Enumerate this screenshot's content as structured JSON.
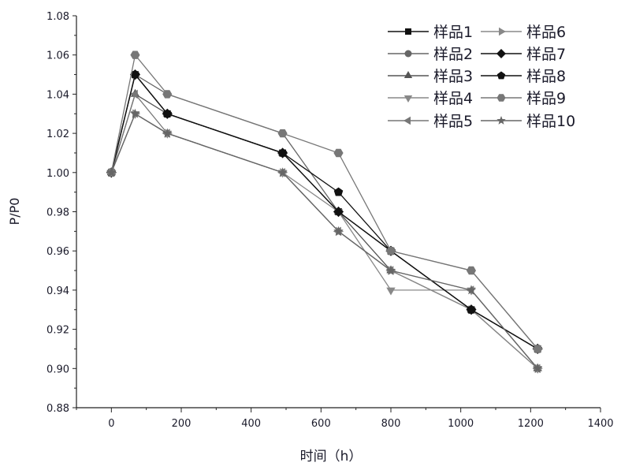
{
  "chart_data": {
    "type": "line",
    "title": "",
    "xlabel": "时间（h）",
    "ylabel": "P/P0",
    "xlim": [
      -100,
      1400
    ],
    "ylim": [
      0.88,
      1.08
    ],
    "xticks": [
      0,
      200,
      400,
      600,
      800,
      1000,
      1200,
      1400
    ],
    "yticks": [
      "0.88",
      "0.90",
      "0.92",
      "0.94",
      "0.96",
      "0.98",
      "1.00",
      "1.02",
      "1.04",
      "1.06",
      "1.08"
    ],
    "grid": false,
    "legend_position": "top-right",
    "x": [
      0,
      68,
      160,
      490,
      650,
      800,
      1030,
      1220
    ],
    "series": [
      {
        "name": "样品1",
        "marker": "square",
        "color": "#111111",
        "values": [
          1.0,
          1.05,
          1.03,
          1.01,
          0.98,
          0.96,
          0.93,
          0.91
        ]
      },
      {
        "name": "样品2",
        "marker": "circle",
        "color": "#666666",
        "values": [
          1.0,
          1.05,
          1.04,
          1.02,
          0.98,
          0.96,
          0.95,
          0.91
        ]
      },
      {
        "name": "样品3",
        "marker": "triangle-up",
        "color": "#555555",
        "values": [
          1.0,
          1.04,
          1.03,
          1.01,
          0.98,
          0.95,
          0.93,
          0.9
        ]
      },
      {
        "name": "样品4",
        "marker": "triangle-down",
        "color": "#888888",
        "values": [
          1.0,
          1.03,
          1.02,
          1.0,
          0.98,
          0.94,
          0.94,
          0.9
        ]
      },
      {
        "name": "样品5",
        "marker": "triangle-left",
        "color": "#777777",
        "values": [
          1.0,
          1.04,
          1.02,
          1.0,
          0.97,
          0.95,
          0.94,
          0.9
        ]
      },
      {
        "name": "样品6",
        "marker": "triangle-right",
        "color": "#888888",
        "values": [
          1.0,
          1.03,
          1.02,
          1.0,
          0.97,
          0.95,
          0.93,
          0.9
        ]
      },
      {
        "name": "样品7",
        "marker": "diamond",
        "color": "#111111",
        "values": [
          1.0,
          1.05,
          1.03,
          1.01,
          0.98,
          0.96,
          0.93,
          0.91
        ]
      },
      {
        "name": "样品8",
        "marker": "pentagon",
        "color": "#111111",
        "values": [
          1.0,
          1.05,
          1.03,
          1.01,
          0.99,
          0.96,
          0.93,
          0.91
        ]
      },
      {
        "name": "样品9",
        "marker": "hexagon",
        "color": "#777777",
        "values": [
          1.0,
          1.06,
          1.04,
          1.02,
          1.01,
          0.96,
          0.95,
          0.91
        ]
      },
      {
        "name": "样品10",
        "marker": "star",
        "color": "#666666",
        "values": [
          1.0,
          1.03,
          1.02,
          1.0,
          0.97,
          0.95,
          0.94,
          0.9
        ]
      }
    ]
  }
}
